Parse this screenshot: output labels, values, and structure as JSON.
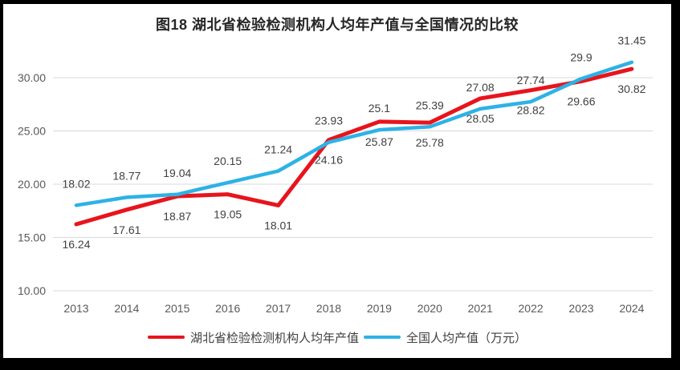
{
  "title": "图18  湖北省检验检测机构人均年产值与全国情况的比较",
  "colors": {
    "hubei_red": "#E8141C",
    "national_blue": "#2DB2E6",
    "gridline": "#D9D9D9",
    "axis_text": "#595959",
    "data_label": "#404040",
    "title_text": "#262626",
    "frame": "#000000",
    "background": "#FFFFFF"
  },
  "chart_data": {
    "type": "line",
    "title": "图18  湖北省检验检测机构人均年产值与全国情况的比较",
    "categories": [
      "2013",
      "2014",
      "2015",
      "2016",
      "2017",
      "2018",
      "2019",
      "2020",
      "2021",
      "2022",
      "2023",
      "2024"
    ],
    "series": [
      {
        "name": "湖北省检验检测机构人均年产值",
        "color": "#E8141C",
        "values": [
          16.24,
          17.61,
          18.87,
          19.05,
          18.01,
          24.16,
          25.87,
          25.78,
          28.05,
          28.82,
          29.66,
          30.82
        ],
        "label_position": "below"
      },
      {
        "name": "全国人均产值（万元）",
        "color": "#2DB2E6",
        "values": [
          18.02,
          18.77,
          19.04,
          20.15,
          21.24,
          23.93,
          25.1,
          25.39,
          27.08,
          27.74,
          29.9,
          31.45
        ],
        "label_position": "above"
      }
    ],
    "y_ticks": [
      {
        "label": "30.00",
        "value": 30
      },
      {
        "label": "25.00",
        "value": 25
      },
      {
        "label": "20.00",
        "value": 20
      },
      {
        "label": "15.00",
        "value": 15
      },
      {
        "label": "10.00",
        "value": 10
      }
    ],
    "ylim": [
      10,
      32.5
    ],
    "xlabel": "",
    "ylabel": "",
    "grid": "horizontal",
    "legend_position": "bottom",
    "data_labels": true
  }
}
